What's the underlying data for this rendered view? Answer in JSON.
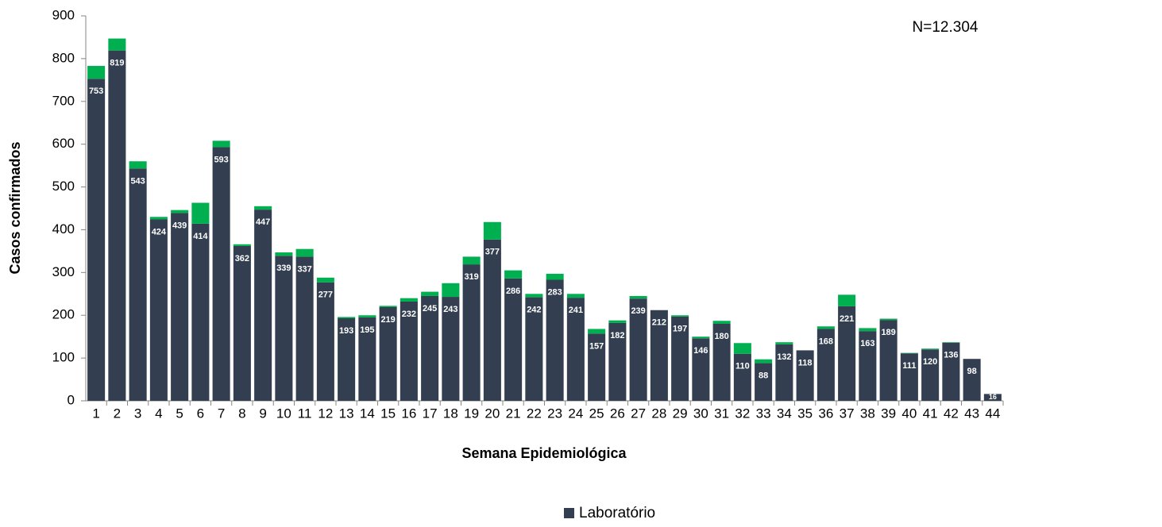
{
  "chart_data": {
    "type": "stacked_bar",
    "annotation": "N=12.304",
    "y_label": "Casos confirmados",
    "x_label": "Semana Epidemiológica",
    "categories": [
      "1",
      "2",
      "3",
      "4",
      "5",
      "6",
      "7",
      "8",
      "9",
      "10",
      "11",
      "12",
      "13",
      "14",
      "15",
      "16",
      "17",
      "18",
      "19",
      "20",
      "21",
      "22",
      "23",
      "24",
      "25",
      "26",
      "27",
      "28",
      "29",
      "30",
      "31",
      "32",
      "33",
      "34",
      "35",
      "36",
      "37",
      "38",
      "39",
      "40",
      "41",
      "42",
      "43",
      "44"
    ],
    "series": [
      {
        "name": "Laboratório",
        "color": "#333f50",
        "values": [
          753,
          819,
          543,
          424,
          439,
          414,
          593,
          362,
          447,
          339,
          337,
          277,
          193,
          195,
          219,
          232,
          245,
          243,
          319,
          377,
          286,
          242,
          283,
          241,
          157,
          182,
          239,
          212,
          197,
          146,
          180,
          110,
          88,
          132,
          118,
          168,
          221,
          163,
          189,
          111,
          120,
          136,
          98,
          16
        ]
      },
      {
        "color": "#00b050",
        "values": [
          30,
          28,
          17,
          6,
          7,
          49,
          15,
          4,
          8,
          8,
          18,
          11,
          3,
          5,
          3,
          8,
          10,
          32,
          18,
          41,
          19,
          8,
          14,
          9,
          11,
          6,
          6,
          0,
          3,
          4,
          7,
          25,
          9,
          5,
          0,
          6,
          27,
          7,
          3,
          1,
          2,
          1,
          0,
          0
        ]
      }
    ],
    "ylim": [
      0,
      900
    ],
    "yticks": [
      0,
      100,
      200,
      300,
      400,
      500,
      600,
      700,
      800,
      900
    ],
    "legend": "bottom"
  }
}
